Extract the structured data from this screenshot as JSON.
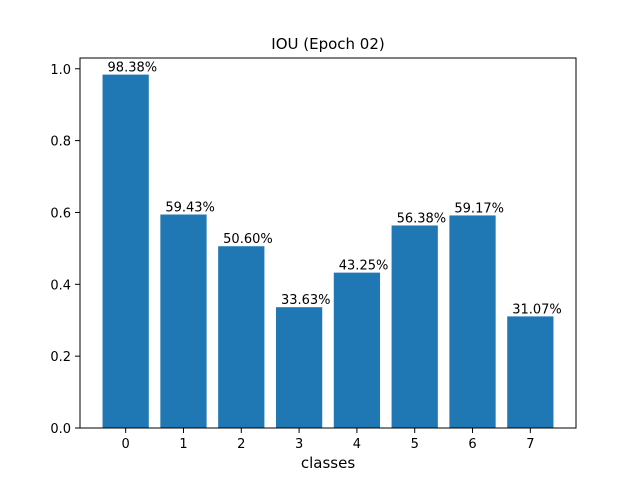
{
  "chart_data": {
    "type": "bar",
    "title": "IOU (Epoch 02)",
    "xlabel": "classes",
    "ylabel": "",
    "categories": [
      "0",
      "1",
      "2",
      "3",
      "4",
      "5",
      "6",
      "7"
    ],
    "values": [
      0.9838,
      0.5943,
      0.506,
      0.3363,
      0.4325,
      0.5638,
      0.5917,
      0.3107
    ],
    "data_labels": [
      "98.38%",
      "59.43%",
      "50.60%",
      "33.63%",
      "43.25%",
      "56.38%",
      "59.17%",
      "31.07%"
    ],
    "ylim": [
      0,
      1.03
    ],
    "yticks": [
      0.0,
      0.2,
      0.4,
      0.6,
      0.8,
      1.0
    ],
    "ytick_labels": [
      "0.0",
      "0.2",
      "0.4",
      "0.6",
      "0.8",
      "1.0"
    ],
    "bar_color": "#1f77b4",
    "grid": false,
    "legend": "none"
  }
}
